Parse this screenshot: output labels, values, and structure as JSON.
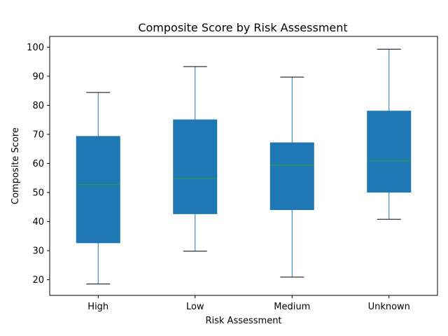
{
  "chart_data": {
    "type": "boxplot",
    "title": "Composite Score by Risk Assessment",
    "xlabel": "Risk Assessment",
    "ylabel": "Composite Score",
    "ylim": [
      14.6,
      103.7
    ],
    "yticks": [
      20,
      30,
      40,
      50,
      60,
      70,
      80,
      90,
      100
    ],
    "grid": false,
    "categories": [
      "High",
      "Low",
      "Medium",
      "Unknown"
    ],
    "boxes": [
      {
        "category": "High",
        "whisker_low": 18.5,
        "q1": 32.7,
        "median": 52.7,
        "q3": 69.3,
        "whisker_high": 84.4
      },
      {
        "category": "Low",
        "whisker_low": 29.8,
        "q1": 42.7,
        "median": 54.8,
        "q3": 75.0,
        "whisker_high": 93.3
      },
      {
        "category": "Medium",
        "whisker_low": 20.9,
        "q1": 44.1,
        "median": 59.4,
        "q3": 67.1,
        "whisker_high": 89.7
      },
      {
        "category": "Unknown",
        "whisker_low": 40.8,
        "q1": 50.1,
        "median": 60.9,
        "q3": 78.0,
        "whisker_high": 99.3
      }
    ],
    "colors": {
      "box_fill": "#1f77b4",
      "whisker": "#1f77b4",
      "cap": "#000000",
      "median": "#2ca02c",
      "axes": "#000000"
    }
  }
}
